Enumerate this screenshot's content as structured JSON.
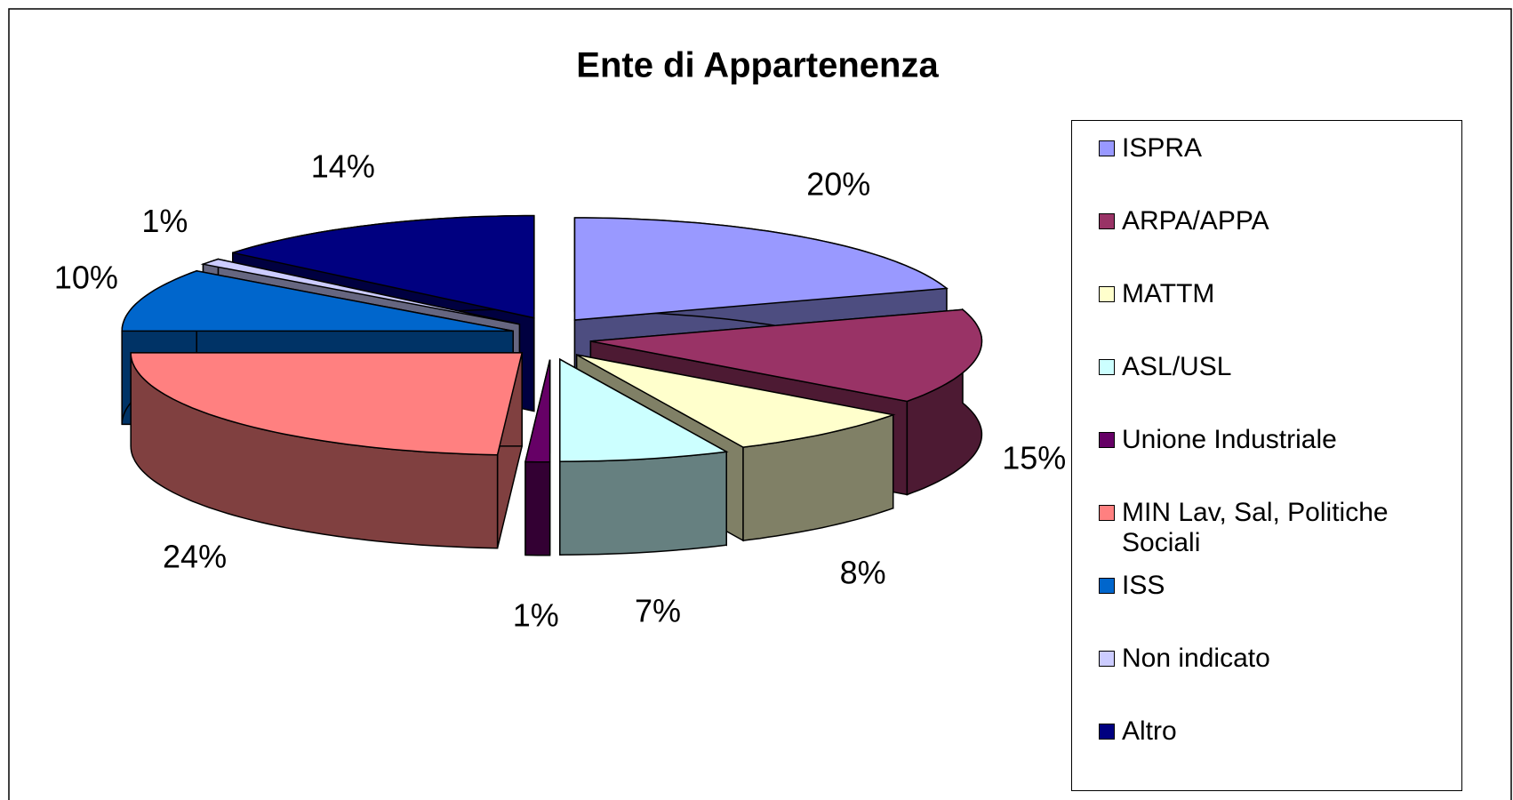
{
  "chart_data": {
    "type": "pie",
    "title": "Ente di Appartenenza",
    "categories": [
      "ISPRA",
      "ARPA/APPA",
      "MATTM",
      "ASL/USL",
      "Unione Industriale",
      "MIN Lav, Sal, Politiche Sociali",
      "ISS",
      "Non indicato",
      "Altro"
    ],
    "values": [
      20,
      15,
      8,
      7,
      1,
      24,
      10,
      1,
      14
    ],
    "value_labels": [
      "20%",
      "15%",
      "8%",
      "7%",
      "1%",
      "24%",
      "10%",
      "1%",
      "14%"
    ],
    "colors": [
      "#9999FF",
      "#993366",
      "#FFFFCC",
      "#CCFFFF",
      "#660066",
      "#FF8080",
      "#0066CC",
      "#CCCCFF",
      "#000080"
    ],
    "legend": "right"
  }
}
